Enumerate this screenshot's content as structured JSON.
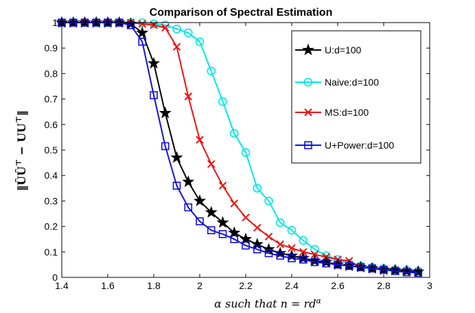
{
  "chart_data": {
    "type": "line",
    "title": "Comparison of Spectral Estimation",
    "xlabel": "α such that n = rd^α",
    "ylabel": "‖ÛÛ^T − UU^T‖",
    "xlim": [
      1.4,
      3.0
    ],
    "ylim": [
      0,
      1
    ],
    "xticks": [
      "1.4",
      "1.6",
      "1.8",
      "2",
      "2.2",
      "2.4",
      "2.6",
      "2.8",
      "3"
    ],
    "yticks": [
      "0",
      "0.1",
      "0.2",
      "0.3",
      "0.4",
      "0.5",
      "0.6",
      "0.7",
      "0.8",
      "0.9",
      "1"
    ],
    "x": [
      1.4,
      1.45,
      1.5,
      1.55,
      1.6,
      1.65,
      1.7,
      1.75,
      1.8,
      1.85,
      1.9,
      1.95,
      2.0,
      2.05,
      2.1,
      2.15,
      2.2,
      2.25,
      2.3,
      2.35,
      2.4,
      2.45,
      2.5,
      2.55,
      2.6,
      2.65,
      2.7,
      2.75,
      2.8,
      2.85,
      2.9,
      2.95
    ],
    "series": [
      {
        "name": "U:d=100",
        "color": "#000000",
        "marker": "star",
        "values": [
          1.0,
          1.0,
          1.0,
          1.0,
          1.0,
          1.0,
          0.995,
          0.96,
          0.84,
          0.645,
          0.47,
          0.375,
          0.3,
          0.255,
          0.215,
          0.175,
          0.15,
          0.13,
          0.11,
          0.095,
          0.085,
          0.075,
          0.065,
          0.06,
          0.05,
          0.045,
          0.04,
          0.035,
          0.03,
          0.028,
          0.025,
          0.022
        ]
      },
      {
        "name": "Naive:d=100",
        "color": "#00e6e6",
        "marker": "circle",
        "values": [
          1.0,
          1.0,
          1.0,
          1.0,
          1.0,
          1.0,
          1.0,
          1.0,
          0.995,
          0.99,
          0.975,
          0.96,
          0.925,
          0.81,
          0.69,
          0.565,
          0.49,
          0.35,
          0.3,
          0.215,
          0.185,
          0.145,
          0.11,
          0.085,
          0.07,
          0.055,
          0.045,
          0.04,
          0.035,
          0.03,
          0.028,
          0.025
        ]
      },
      {
        "name": "MS:d=100",
        "color": "#ee1111",
        "marker": "x",
        "values": [
          1.0,
          1.0,
          1.0,
          1.0,
          1.0,
          1.0,
          1.0,
          0.995,
          0.99,
          0.98,
          0.905,
          0.71,
          0.54,
          0.445,
          0.36,
          0.29,
          0.235,
          0.195,
          0.16,
          0.13,
          0.115,
          0.1,
          0.09,
          0.08,
          0.07,
          0.065,
          0.04,
          0.035,
          0.03,
          0.028,
          0.025,
          0.02
        ]
      },
      {
        "name": "U+Power:d=100",
        "color": "#1010dd",
        "marker": "square",
        "values": [
          1.0,
          1.0,
          1.0,
          1.0,
          1.0,
          1.0,
          0.99,
          0.925,
          0.715,
          0.515,
          0.36,
          0.275,
          0.22,
          0.185,
          0.17,
          0.15,
          0.125,
          0.11,
          0.095,
          0.085,
          0.075,
          0.07,
          0.06,
          0.055,
          0.05,
          0.045,
          0.04,
          0.035,
          0.03,
          0.025,
          0.02,
          0.018
        ]
      }
    ],
    "legend_position": "top-right",
    "grid": false
  }
}
